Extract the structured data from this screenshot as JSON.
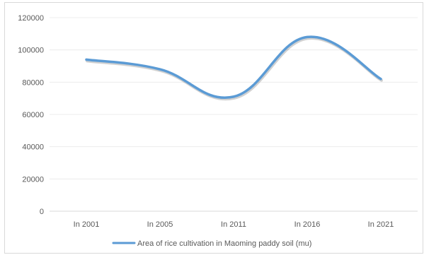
{
  "chart_data": {
    "type": "line",
    "categories": [
      "In 2001",
      "In 2005",
      "In 2011",
      "In 2016",
      "In 2021"
    ],
    "series": [
      {
        "name": "Area of rice cultivation in Maoming paddy soil (mu)",
        "values": [
          94000,
          88000,
          71000,
          108000,
          82000
        ],
        "color": "#5b9bd5"
      }
    ],
    "y_ticks": [
      "0",
      "20000",
      "40000",
      "60000",
      "80000",
      "100000",
      "120000"
    ],
    "ylim": [
      0,
      120000
    ],
    "grid": true,
    "legend_position": "bottom",
    "line_style": "smooth"
  }
}
